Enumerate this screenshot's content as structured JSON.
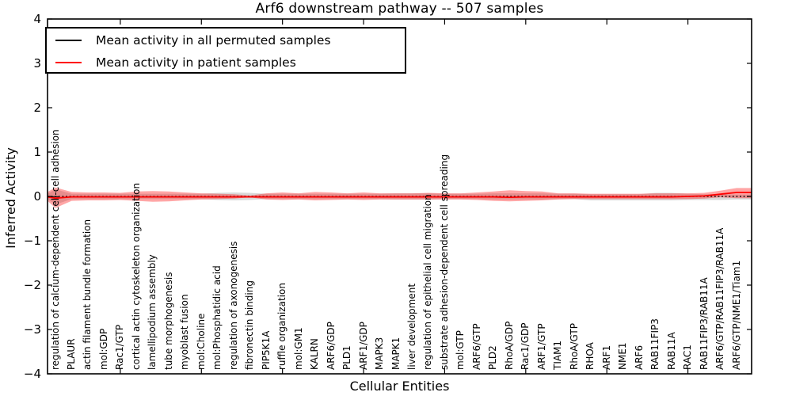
{
  "chart_data": {
    "type": "line",
    "title": "Arf6 downstream pathway -- 507 samples",
    "xlabel": "Cellular Entities",
    "ylabel": "Inferred Activity",
    "ylim": [
      -4,
      4
    ],
    "grid": false,
    "ytick_values": [
      4,
      3,
      2,
      1,
      0,
      -1,
      -2,
      -3,
      -4
    ],
    "ytick_labels": [
      "4",
      "3",
      "2",
      "1",
      "0",
      "−1",
      "−2",
      "−3",
      "−4"
    ],
    "xtick_major_entities": [
      4,
      9,
      14,
      19,
      24,
      29,
      34,
      39
    ],
    "legend": {
      "position": "upper left",
      "entries": [
        {
          "label": "Mean activity in all permuted samples",
          "color": "#000000"
        },
        {
          "label": "Mean activity in patient samples",
          "color": "#ff0000"
        }
      ]
    },
    "categories": [
      "regulation of calcium-dependent cell-cell adhesion",
      "PLAUR",
      "actin filament bundle formation",
      "mol:GDP",
      "Rac1/GTP",
      "cortical actin cytoskeleton organization",
      "lamellipodium assembly",
      "tube morphogenesis",
      "myoblast fusion",
      "mol:Choline",
      "mol:Phosphatidic acid",
      "regulation of axonogenesis",
      "fibronectin binding",
      "PIP5K1A",
      "ruffle organization",
      "mol:GM1",
      "KALRN",
      "ARF6/GDP",
      "PLD1",
      "ARF1/GDP",
      "MAPK3",
      "MAPK1",
      "liver development",
      "regulation of epithelial cell migration",
      "substrate adhesion-dependent cell spreading",
      "mol:GTP",
      "ARF6/GTP",
      "PLD2",
      "RhoA/GDP",
      "Rac1/GDP",
      "ARF1/GTP",
      "TIAM1",
      "RhoA/GTP",
      "RHOA",
      "ARF1",
      "NME1",
      "ARF6",
      "RAB11FIP3",
      "RAB11A",
      "RAC1",
      "RAB11FIP3/RAB11A",
      "ARF6/GTP/RAB11FIP3/RAB11A",
      "ARF6/GTP/NME1/Tiam1"
    ],
    "series": [
      {
        "name": "Mean activity in all permuted samples",
        "color": "#000000",
        "style": "dotted",
        "values": [
          0,
          0,
          0,
          0,
          0,
          0,
          0,
          0,
          0,
          0,
          0,
          0,
          0,
          0,
          0,
          0,
          0,
          0,
          0,
          0,
          0,
          0,
          0,
          0,
          0,
          0,
          0,
          0,
          0,
          0,
          0,
          0,
          0,
          0,
          0,
          0,
          0,
          0,
          0,
          0,
          0,
          0,
          0
        ]
      },
      {
        "name": "Mean activity in patient samples",
        "color": "#ff0000",
        "style": "solid",
        "values": [
          -0.04,
          -0.01,
          -0.01,
          -0.01,
          -0.01,
          -0.01,
          -0.01,
          -0.01,
          -0.01,
          -0.01,
          -0.01,
          -0.01,
          -0.01,
          -0.01,
          -0.01,
          -0.01,
          -0.01,
          -0.01,
          -0.01,
          -0.01,
          -0.01,
          -0.01,
          -0.01,
          -0.01,
          -0.01,
          -0.01,
          -0.01,
          -0.01,
          -0.02,
          -0.01,
          -0.01,
          -0.01,
          -0.01,
          -0.01,
          -0.01,
          -0.01,
          -0.01,
          -0.01,
          -0.01,
          0.0,
          0.01,
          0.05,
          0.09
        ]
      }
    ],
    "bands": [
      {
        "name": "permuted-samples-std-band",
        "color": "#000000",
        "opacity": 0.15,
        "upper": [
          0.16,
          0.06,
          0.06,
          0.06,
          0.06,
          0.06,
          0.06,
          0.06,
          0.06,
          0.06,
          0.08,
          0.09,
          0.08,
          0.06,
          0.06,
          0.06,
          0.06,
          0.06,
          0.06,
          0.06,
          0.06,
          0.07,
          0.07,
          0.07,
          0.06,
          0.06,
          0.06,
          0.07,
          0.07,
          0.07,
          0.07,
          0.06,
          0.06,
          0.05,
          0.05,
          0.05,
          0.05,
          0.08,
          0.08,
          0.06,
          0.05,
          0.05,
          0.04
        ],
        "lower": [
          -0.18,
          -0.06,
          -0.06,
          -0.06,
          -0.06,
          -0.06,
          -0.06,
          -0.06,
          -0.06,
          -0.06,
          -0.08,
          -0.09,
          -0.08,
          -0.06,
          -0.06,
          -0.06,
          -0.06,
          -0.06,
          -0.06,
          -0.06,
          -0.06,
          -0.07,
          -0.07,
          -0.07,
          -0.06,
          -0.06,
          -0.06,
          -0.07,
          -0.07,
          -0.07,
          -0.07,
          -0.06,
          -0.06,
          -0.09,
          -0.09,
          -0.09,
          -0.09,
          -0.09,
          -0.09,
          -0.08,
          -0.08,
          -0.08,
          -0.07
        ]
      },
      {
        "name": "patient-samples-std-band",
        "color": "#ff0000",
        "opacity": 0.35,
        "upper": [
          0.2,
          0.1,
          0.09,
          0.09,
          0.08,
          0.11,
          0.12,
          0.11,
          0.09,
          0.07,
          0.06,
          0.05,
          0.02,
          0.07,
          0.09,
          0.07,
          0.1,
          0.09,
          0.07,
          0.09,
          0.07,
          0.07,
          0.07,
          0.08,
          0.07,
          0.07,
          0.09,
          0.11,
          0.14,
          0.12,
          0.11,
          0.07,
          0.07,
          0.06,
          0.06,
          0.06,
          0.06,
          0.07,
          0.07,
          0.07,
          0.08,
          0.13,
          0.19
        ],
        "lower": [
          -0.26,
          -0.1,
          -0.09,
          -0.09,
          -0.08,
          -0.1,
          -0.12,
          -0.11,
          -0.09,
          -0.07,
          -0.06,
          -0.05,
          -0.02,
          -0.07,
          -0.08,
          -0.07,
          -0.09,
          -0.08,
          -0.07,
          -0.08,
          -0.07,
          -0.07,
          -0.07,
          -0.07,
          -0.07,
          -0.07,
          -0.08,
          -0.1,
          -0.11,
          -0.1,
          -0.09,
          -0.07,
          -0.06,
          -0.06,
          -0.06,
          -0.06,
          -0.06,
          -0.06,
          -0.06,
          -0.06,
          -0.05,
          -0.02,
          -0.04
        ]
      }
    ]
  }
}
